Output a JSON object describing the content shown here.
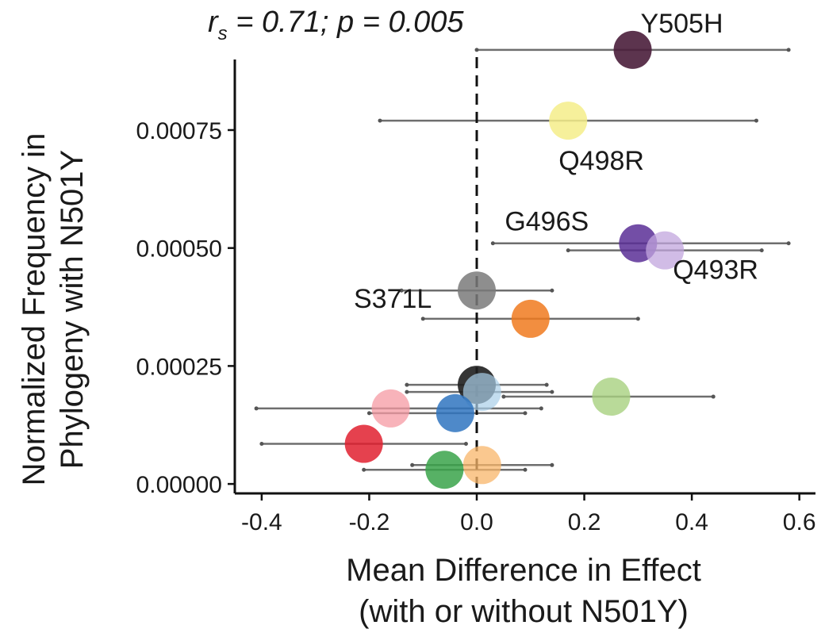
{
  "chart_data": {
    "type": "scatter",
    "annotation": {
      "r": "r",
      "sub": "s",
      "rest": " = 0.71; p = 0.005"
    },
    "xlabel": [
      "Mean Difference in Effect",
      "(with or without N501Y)"
    ],
    "ylabel": [
      "Normalized Frequency in",
      "Phylogeny with N501Y"
    ],
    "xlim": [
      -0.45,
      0.63
    ],
    "ylim": [
      -2e-05,
      0.00095
    ],
    "x_ticks": [
      {
        "value": -0.4,
        "label": "-0.4"
      },
      {
        "value": -0.2,
        "label": "-0.2"
      },
      {
        "value": 0.0,
        "label": "0.0"
      },
      {
        "value": 0.2,
        "label": "0.2"
      },
      {
        "value": 0.4,
        "label": "0.4"
      },
      {
        "value": 0.6,
        "label": "0.6"
      }
    ],
    "y_ticks": [
      {
        "value": 0.0,
        "label": "0.00000"
      },
      {
        "value": 0.00025,
        "label": "0.00025"
      },
      {
        "value": 0.0005,
        "label": "0.00050"
      },
      {
        "value": 0.00075,
        "label": "0.00075"
      }
    ],
    "reference_line_x": 0.0,
    "points": [
      {
        "label": "Y505H",
        "x": 0.29,
        "y": 0.00092,
        "xmin": 0.0,
        "xmax": 0.58,
        "color": "#4a1e3b",
        "opacity": 0.9
      },
      {
        "label": "Q498R",
        "x": 0.17,
        "y": 0.00077,
        "xmin": -0.18,
        "xmax": 0.52,
        "color": "#f5ed8a",
        "opacity": 0.85
      },
      {
        "label": "G496S",
        "x": 0.3,
        "y": 0.00051,
        "xmin": 0.03,
        "xmax": 0.58,
        "color": "#5b2f96",
        "opacity": 0.85
      },
      {
        "label": "Q493R",
        "x": 0.35,
        "y": 0.000495,
        "xmin": 0.17,
        "xmax": 0.53,
        "color": "#c2a6dd",
        "opacity": 0.75
      },
      {
        "label": "S371L",
        "x": 0.0,
        "y": 0.00041,
        "xmin": -0.14,
        "xmax": 0.14,
        "color": "#7a7a7a",
        "opacity": 0.85
      },
      {
        "label": "",
        "x": 0.1,
        "y": 0.00035,
        "xmin": -0.1,
        "xmax": 0.3,
        "color": "#f07a1e",
        "opacity": 0.85
      },
      {
        "label": "",
        "x": 0.0,
        "y": 0.00021,
        "xmin": -0.13,
        "xmax": 0.13,
        "color": "#1f1f1f",
        "opacity": 0.9
      },
      {
        "label": "",
        "x": 0.01,
        "y": 0.000195,
        "xmin": -0.13,
        "xmax": 0.14,
        "color": "#a9cfe8",
        "opacity": 0.7
      },
      {
        "label": "",
        "x": 0.25,
        "y": 0.000185,
        "xmin": 0.05,
        "xmax": 0.44,
        "color": "#a8d17f",
        "opacity": 0.8
      },
      {
        "label": "",
        "x": -0.16,
        "y": 0.00016,
        "xmin": -0.41,
        "xmax": 0.12,
        "color": "#f59aa3",
        "opacity": 0.75
      },
      {
        "label": "",
        "x": -0.04,
        "y": 0.00015,
        "xmin": -0.2,
        "xmax": 0.09,
        "color": "#2f74bf",
        "opacity": 0.85
      },
      {
        "label": "",
        "x": -0.21,
        "y": 8.5e-05,
        "xmin": -0.4,
        "xmax": -0.02,
        "color": "#e0202f",
        "opacity": 0.85
      },
      {
        "label": "",
        "x": 0.01,
        "y": 4e-05,
        "xmin": -0.12,
        "xmax": 0.14,
        "color": "#f8b56a",
        "opacity": 0.75
      },
      {
        "label": "",
        "x": -0.06,
        "y": 3e-05,
        "xmin": -0.21,
        "xmax": 0.09,
        "color": "#3aa34a",
        "opacity": 0.85
      }
    ]
  }
}
